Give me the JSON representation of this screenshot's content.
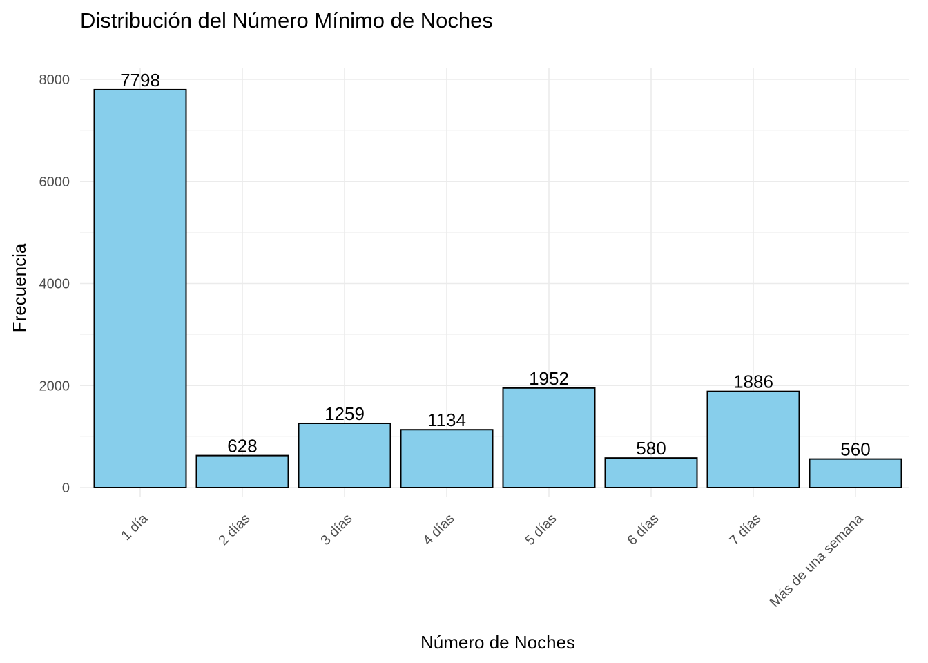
{
  "chart_data": {
    "type": "bar",
    "title": "Distribución del Número Mínimo de Noches",
    "xlabel": "Número de Noches",
    "ylabel": "Frecuencia",
    "categories": [
      "1 día",
      "2 días",
      "3 días",
      "4 días",
      "5 días",
      "6 días",
      "7 días",
      "Más de una semana"
    ],
    "values": [
      7798,
      628,
      1259,
      1134,
      1952,
      580,
      1886,
      560
    ],
    "ylim": [
      0,
      8000
    ],
    "yticks": [
      0,
      2000,
      4000,
      6000,
      8000
    ],
    "yticks_minor": [
      1000,
      3000,
      5000,
      7000
    ],
    "grid": true,
    "bar_color": "#87CEEB",
    "bar_border_color": "#000000",
    "data_labels": true,
    "legend": "none"
  }
}
